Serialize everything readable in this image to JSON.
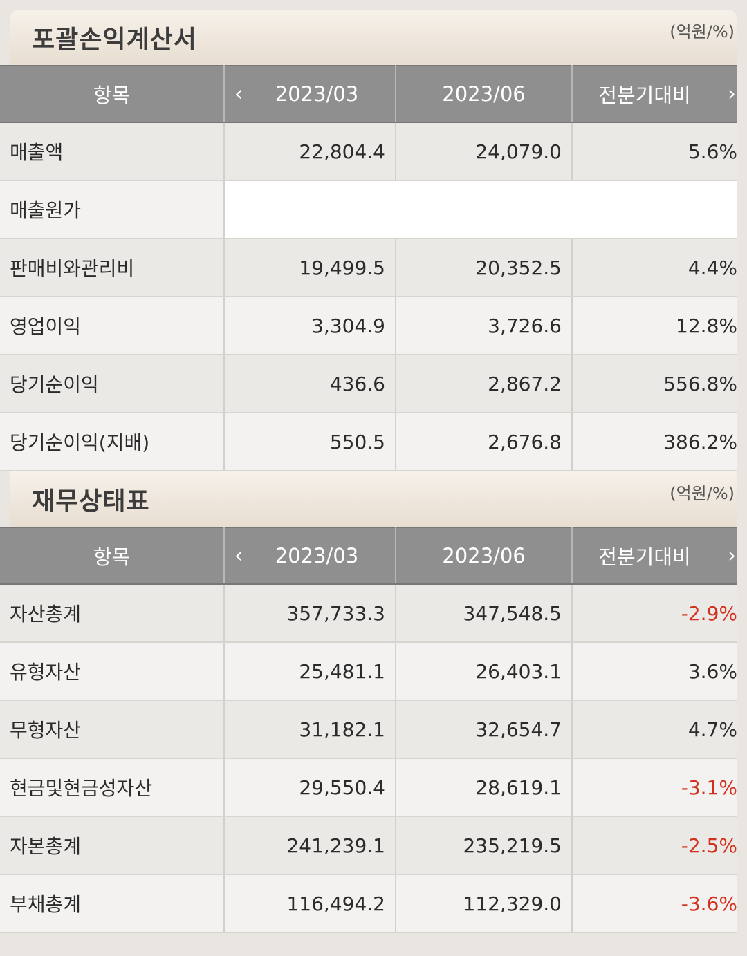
{
  "income": {
    "title": "포괄손익계산서",
    "unit": "(억원/%)",
    "headers": {
      "item": "항목",
      "p1": "2023/03",
      "p2": "2023/06",
      "compare": "전분기대비"
    },
    "rows": [
      {
        "label": "매출액",
        "v1": "22,804.4",
        "v2": "24,079.0",
        "chg": "5.6%"
      },
      {
        "label": "매출원가",
        "v1": "",
        "v2": "",
        "chg": ""
      },
      {
        "label": "판매비와관리비",
        "v1": "19,499.5",
        "v2": "20,352.5",
        "chg": "4.4%"
      },
      {
        "label": "영업이익",
        "v1": "3,304.9",
        "v2": "3,726.6",
        "chg": "12.8%"
      },
      {
        "label": "당기순이익",
        "v1": "436.6",
        "v2": "2,867.2",
        "chg": "556.8%"
      },
      {
        "label": "당기순이익(지배)",
        "v1": "550.5",
        "v2": "2,676.8",
        "chg": "386.2%"
      }
    ]
  },
  "balance": {
    "title": "재무상태표",
    "unit": "(억원/%)",
    "headers": {
      "item": "항목",
      "p1": "2023/03",
      "p2": "2023/06",
      "compare": "전분기대비"
    },
    "rows": [
      {
        "label": "자산총계",
        "v1": "357,733.3",
        "v2": "347,548.5",
        "chg": "-2.9%"
      },
      {
        "label": "유형자산",
        "v1": "25,481.1",
        "v2": "26,403.1",
        "chg": "3.6%"
      },
      {
        "label": "무형자산",
        "v1": "31,182.1",
        "v2": "32,654.7",
        "chg": "4.7%"
      },
      {
        "label": "현금및현금성자산",
        "v1": "29,550.4",
        "v2": "28,619.1",
        "chg": "-3.1%"
      },
      {
        "label": "자본총계",
        "v1": "241,239.1",
        "v2": "235,219.5",
        "chg": "-2.5%"
      },
      {
        "label": "부채총계",
        "v1": "116,494.2",
        "v2": "112,329.0",
        "chg": "-3.6%"
      }
    ]
  },
  "icons": {
    "prev": "chevron-left-icon",
    "next": "chevron-right-icon"
  },
  "colors": {
    "header_bg": "#8f8f8f",
    "negative": "#d2301d",
    "section_bg": "#efe7dc"
  }
}
